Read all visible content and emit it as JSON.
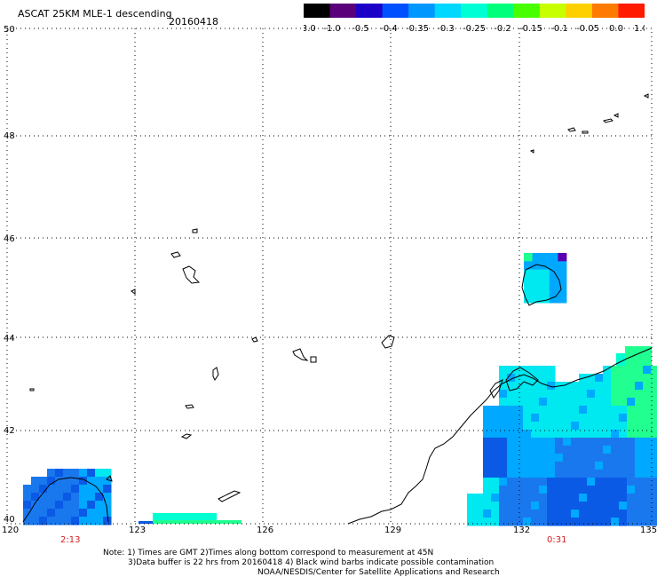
{
  "header": {
    "title": "ASCAT 25KM MLE-1 descending",
    "date": "20160418"
  },
  "colorbar": {
    "labels": [
      "-3.0",
      "-1.0",
      "-0.5",
      "-0.4",
      "-0.35",
      "-0.3",
      "-0.25",
      "-0.2",
      "-0.15",
      "-0.1",
      "-0.05",
      "0.0",
      "1.0"
    ],
    "colors": [
      "#000000",
      "#5a007a",
      "#1a00c8",
      "#0050ff",
      "#0098ff",
      "#00d8ff",
      "#00ffd4",
      "#00ff7a",
      "#48ff00",
      "#c8ff00",
      "#ffd000",
      "#ff7a00",
      "#ff1a00"
    ]
  },
  "map": {
    "lat_labels": [
      "50",
      "48",
      "46",
      "44",
      "42",
      "40"
    ],
    "lon_labels": [
      "120",
      "123",
      "126",
      "129",
      "132",
      "135"
    ],
    "time_labels": [
      "2:13",
      "0:31"
    ],
    "colors": {
      "deep": "#0a5ae6",
      "blue": "#1a78ee",
      "mid": "#00a8ff",
      "cyan": "#00e8f0",
      "teal": "#00ffd0",
      "green": "#20ff90",
      "lime": "#7aff20",
      "violet": "#5a00b0"
    }
  },
  "notes": {
    "line1": "Note: 1) Times are GMT 2)Times along bottom correspond to measurement at 45N",
    "line2": "3)Data buffer is 22 hrs from 20160418 4) Black wind barbs indicate possible contamination",
    "line3": "NOAA/NESDIS/Center for Satellite Applications and Research"
  }
}
